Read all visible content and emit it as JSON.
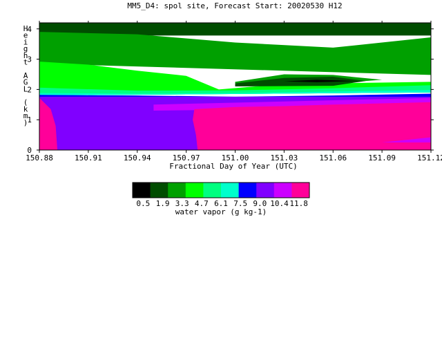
{
  "chart_data": {
    "type": "heatmap",
    "title": "MM5_D4: spol site,  Forecast Start: 20020530 H12",
    "xlabel": "Fractional Day of Year (UTC)",
    "ylabel": "Height AGL (km)",
    "xlim": [
      150.88,
      151.12
    ],
    "ylim": [
      0,
      4.2
    ],
    "x_ticks": [
      "150.88",
      "150.91",
      "150.94",
      "150.97",
      "151.00",
      "151.03",
      "151.06",
      "151.09",
      "151.12"
    ],
    "y_ticks": [
      "0",
      "1",
      "2",
      "3",
      "4"
    ],
    "colorbar": {
      "label": "water vapor (g kg-1)",
      "tick_labels": [
        "0.5",
        "1.9",
        "3.3",
        "4.7",
        "6.1",
        "7.5",
        "9.0",
        "10.4",
        "11.8"
      ],
      "colors": [
        "#000000",
        "#004d00",
        "#00a000",
        "#00ff00",
        "#00ff80",
        "#00ffcc",
        "#0000ff",
        "#8000ff",
        "#cc00ff",
        "#ff0099"
      ]
    },
    "regions": [
      {
        "class": 1,
        "color": "#004d00",
        "polygon": [
          [
            150.88,
            4.2
          ],
          [
            151.12,
            4.2
          ],
          [
            151.12,
            3.78
          ],
          [
            150.88,
            3.78
          ]
        ]
      },
      {
        "class": 2,
        "color": "#00a000",
        "polygon": [
          [
            150.88,
            3.9
          ],
          [
            150.94,
            3.82
          ],
          [
            151.0,
            3.55
          ],
          [
            151.06,
            3.38
          ],
          [
            151.12,
            3.72
          ],
          [
            151.12,
            2.48
          ],
          [
            150.88,
            2.85
          ]
        ]
      },
      {
        "class": 3,
        "color": "#00ff00",
        "polygon": [
          [
            150.88,
            2.92
          ],
          [
            150.91,
            2.82
          ],
          [
            150.94,
            2.62
          ],
          [
            150.97,
            2.45
          ],
          [
            150.99,
            2.0
          ],
          [
            151.03,
            2.18
          ],
          [
            151.12,
            2.25
          ],
          [
            151.12,
            1.9
          ],
          [
            150.88,
            1.8
          ]
        ]
      },
      {
        "class": 2,
        "color": "#00a000",
        "polygon": [
          [
            151.0,
            2.25
          ],
          [
            151.03,
            2.5
          ],
          [
            151.06,
            2.48
          ],
          [
            151.09,
            2.32
          ],
          [
            151.06,
            2.2
          ],
          [
            151.0,
            2.2
          ]
        ]
      },
      {
        "class": 1,
        "color": "#004d00",
        "polygon": [
          [
            151.0,
            2.2
          ],
          [
            151.03,
            2.38
          ],
          [
            151.06,
            2.42
          ],
          [
            151.08,
            2.28
          ],
          [
            151.06,
            2.12
          ],
          [
            151.0,
            2.1
          ]
        ]
      },
      {
        "class": 0,
        "color": "#000000",
        "polygon": [
          [
            151.03,
            2.27
          ],
          [
            151.05,
            2.32
          ],
          [
            151.075,
            2.28
          ],
          [
            151.05,
            2.24
          ]
        ]
      },
      {
        "class": 4,
        "color": "#00ff80",
        "polygon": [
          [
            150.88,
            2.06
          ],
          [
            150.94,
            1.96
          ],
          [
            151.0,
            1.97
          ],
          [
            151.06,
            2.04
          ],
          [
            151.12,
            2.14
          ],
          [
            151.12,
            1.9
          ],
          [
            150.88,
            1.8
          ]
        ]
      },
      {
        "class": 5,
        "color": "#00ffcc",
        "polygon": [
          [
            150.88,
            1.88
          ],
          [
            150.94,
            1.86
          ],
          [
            151.0,
            1.88
          ],
          [
            151.12,
            1.98
          ],
          [
            151.12,
            1.9
          ],
          [
            150.88,
            1.8
          ]
        ]
      },
      {
        "class": 6,
        "color": "#0000ff",
        "polygon": [
          [
            150.88,
            1.82
          ],
          [
            150.94,
            1.8
          ],
          [
            151.0,
            1.76
          ],
          [
            151.06,
            1.8
          ],
          [
            151.12,
            1.86
          ],
          [
            151.12,
            1.64
          ],
          [
            150.88,
            1.64
          ]
        ]
      },
      {
        "class": 7,
        "color": "#8000ff",
        "polygon": [
          [
            150.88,
            1.76
          ],
          [
            151.12,
            1.76
          ],
          [
            151.12,
            0
          ],
          [
            150.88,
            0
          ]
        ]
      },
      {
        "class": 8,
        "color": "#cc00ff",
        "polygon": [
          [
            150.95,
            1.5
          ],
          [
            151.12,
            1.72
          ],
          [
            151.12,
            1.4
          ],
          [
            150.95,
            1.3
          ]
        ]
      },
      {
        "class": 9,
        "color": "#ff0099",
        "polygon": [
          [
            150.88,
            1.72
          ],
          [
            150.887,
            1.35
          ],
          [
            150.89,
            0.8
          ],
          [
            150.891,
            0
          ],
          [
            150.88,
            0
          ]
        ]
      },
      {
        "class": 9,
        "color": "#ff0099",
        "polygon": [
          [
            150.975,
            1.35
          ],
          [
            151.0,
            1.42
          ],
          [
            151.03,
            1.45
          ],
          [
            151.06,
            1.5
          ],
          [
            151.12,
            1.58
          ],
          [
            151.12,
            0
          ],
          [
            150.977,
            0
          ],
          [
            150.976,
            0.5
          ],
          [
            150.974,
            1.0
          ]
        ]
      },
      {
        "class": 8,
        "color": "#cc00ff",
        "polygon": [
          [
            151.09,
            0.25
          ],
          [
            151.12,
            0.42
          ],
          [
            151.12,
            0.25
          ]
        ]
      }
    ]
  }
}
